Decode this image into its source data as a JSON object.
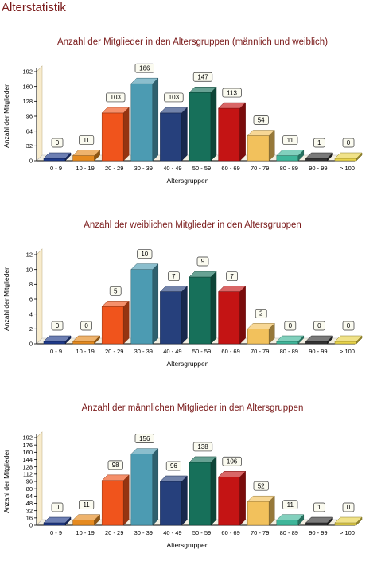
{
  "page_title": "Alterstatistik",
  "colors": [
    "#1e3a8a",
    "#e58a1f",
    "#f0541c",
    "#4c9bb2",
    "#26407c",
    "#17705a",
    "#c41414",
    "#f2c15c",
    "#3fb69a",
    "#333333",
    "#e8d34a"
  ],
  "chart_data": [
    {
      "type": "bar",
      "title": "Anzahl der Mitglieder in den Altersgruppen (männlich und weiblich)",
      "xlabel": "Altersgruppen",
      "ylabel": "Anzahl der Mitglieder",
      "categories": [
        "0 - 9",
        "10 - 19",
        "20 - 29",
        "30 - 39",
        "40 - 49",
        "50 - 59",
        "60 - 69",
        "70 - 79",
        "80 - 89",
        "90 - 99",
        "> 100"
      ],
      "values": [
        0,
        11,
        103,
        166,
        103,
        147,
        113,
        54,
        11,
        1,
        0
      ],
      "value_labels": [
        "0",
        "11",
        "103",
        "166",
        "103",
        "147",
        "113",
        "54",
        "11",
        "1",
        "0"
      ],
      "ylim": [
        0,
        192
      ],
      "yticks": [
        0,
        32,
        64,
        96,
        128,
        160,
        192
      ],
      "ytick_labels": [
        "0",
        "32",
        "64",
        "96",
        "128",
        "160",
        "192"
      ]
    },
    {
      "type": "bar",
      "title": "Anzahl der weiblichen Mitglieder in den Altersgruppen",
      "xlabel": "Altersgruppen",
      "ylabel": "Anzahl der Mitglieder",
      "categories": [
        "0 - 9",
        "10 - 19",
        "20 - 29",
        "30 - 39",
        "40 - 49",
        "50 - 59",
        "60 - 69",
        "70 - 79",
        "80 - 89",
        "90 - 99",
        "> 100"
      ],
      "values": [
        0,
        0,
        5,
        10,
        7,
        9,
        7,
        2,
        0,
        0,
        0
      ],
      "value_labels": [
        "0",
        "0",
        "5",
        "10",
        "7",
        "9",
        "7",
        "2",
        "0",
        "0",
        "0"
      ],
      "ylim": [
        0,
        12
      ],
      "yticks": [
        0,
        2,
        4,
        6,
        8,
        10,
        12
      ],
      "ytick_labels": [
        "0",
        "2",
        "4",
        "6",
        "8",
        "10",
        "12"
      ]
    },
    {
      "type": "bar",
      "title": "Anzahl der männlichen Mitglieder in den Altersgruppen",
      "xlabel": "Altersgruppen",
      "ylabel": "Anzahl der Mitglieder",
      "categories": [
        "0 - 9",
        "10 - 19",
        "20 - 29",
        "30 - 39",
        "40 - 49",
        "50 - 59",
        "60 - 69",
        "70 - 79",
        "80 - 89",
        "90 - 99",
        "> 100"
      ],
      "values": [
        0,
        11,
        98,
        156,
        96,
        138,
        106,
        52,
        11,
        1,
        0
      ],
      "value_labels": [
        "0",
        "11",
        "98",
        "156",
        "96",
        "138",
        "106",
        "52",
        "11",
        "1",
        "0"
      ],
      "ylim": [
        0,
        192
      ],
      "yticks": [
        0,
        16,
        32,
        48,
        64,
        80,
        96,
        112,
        128,
        144,
        160,
        176,
        192
      ],
      "ytick_labels": [
        "0",
        "16",
        "32",
        "48",
        "64",
        "80",
        "96",
        "112",
        "128",
        "144",
        "160",
        "176",
        "192"
      ]
    }
  ]
}
